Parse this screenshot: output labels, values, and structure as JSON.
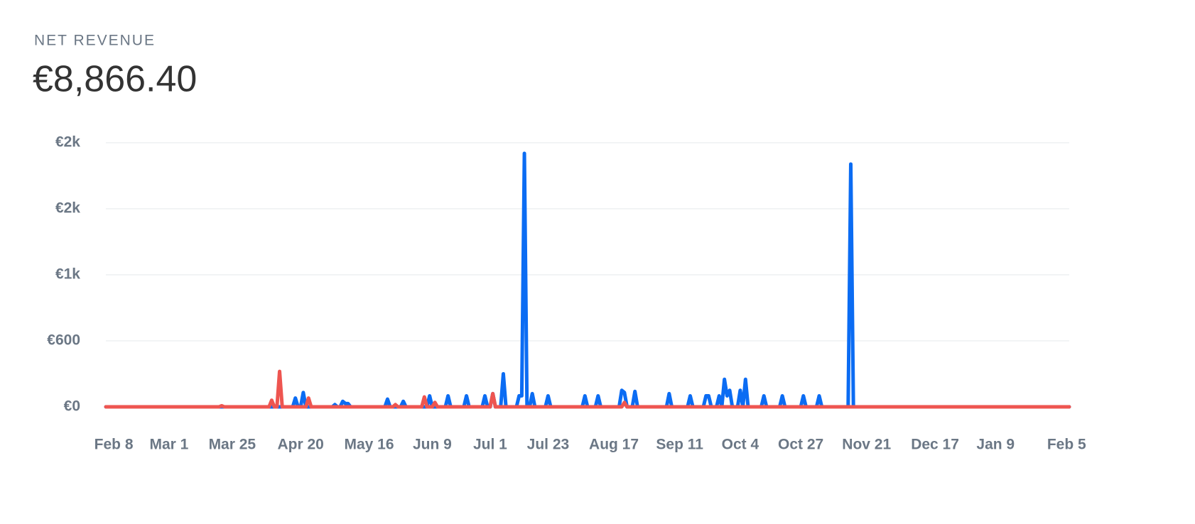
{
  "chart_data": {
    "type": "line",
    "title": "NET REVENUE",
    "headline": "€8,866.40",
    "xlim": [
      0,
      366
    ],
    "xticks": [
      {
        "value": 3,
        "label": "Feb 8"
      },
      {
        "value": 24,
        "label": "Mar 1"
      },
      {
        "value": 48,
        "label": "Mar 25"
      },
      {
        "value": 74,
        "label": "Apr 20"
      },
      {
        "value": 100,
        "label": "May 16"
      },
      {
        "value": 124,
        "label": "Jun 9"
      },
      {
        "value": 146,
        "label": "Jul 1"
      },
      {
        "value": 168,
        "label": "Jul 23"
      },
      {
        "value": 193,
        "label": "Aug 17"
      },
      {
        "value": 218,
        "label": "Sep 11"
      },
      {
        "value": 241,
        "label": "Oct 4"
      },
      {
        "value": 264,
        "label": "Oct 27"
      },
      {
        "value": 289,
        "label": "Nov 21"
      },
      {
        "value": 315,
        "label": "Dec 17"
      },
      {
        "value": 338,
        "label": "Jan 9"
      },
      {
        "value": 365,
        "label": "Feb 5"
      }
    ],
    "ylim": [
      0,
      2400
    ],
    "yticks": [
      {
        "value": 0,
        "label": "€0"
      },
      {
        "value": 600,
        "label": "€600"
      },
      {
        "value": 1200,
        "label": "€1k"
      },
      {
        "value": 1800,
        "label": "€2k"
      },
      {
        "value": 2400,
        "label": "€2k"
      }
    ],
    "grid": true,
    "x": [
      0,
      43,
      44,
      45,
      62,
      63,
      64,
      65,
      66,
      67,
      71,
      72,
      73,
      74,
      75,
      76,
      77,
      78,
      86,
      87,
      88,
      89,
      90,
      91,
      92,
      93,
      106,
      107,
      108,
      109,
      110,
      111,
      112,
      113,
      114,
      120,
      121,
      122,
      123,
      124,
      125,
      126,
      129,
      130,
      131,
      136,
      137,
      138,
      143,
      144,
      145,
      146,
      147,
      148,
      150,
      151,
      152,
      156,
      157,
      158,
      159,
      160,
      161,
      162,
      163,
      167,
      168,
      169,
      181,
      182,
      183,
      186,
      187,
      188,
      195,
      196,
      197,
      198,
      200,
      201,
      202,
      213,
      214,
      215,
      221,
      222,
      223,
      227,
      228,
      229,
      230,
      232,
      233,
      234,
      235,
      236,
      237,
      238,
      240,
      241,
      242,
      243,
      244,
      249,
      250,
      251,
      256,
      257,
      258,
      264,
      265,
      266,
      270,
      271,
      272,
      282,
      283,
      284,
      366
    ],
    "series": [
      {
        "color": "#0b6cf3",
        "values": [
          0,
          0,
          0,
          0,
          0,
          0,
          0,
          0,
          0,
          0,
          0,
          80,
          0,
          0,
          130,
          0,
          0,
          0,
          0,
          20,
          0,
          0,
          50,
          30,
          30,
          0,
          0,
          70,
          0,
          0,
          0,
          0,
          0,
          50,
          0,
          0,
          0,
          0,
          100,
          0,
          0,
          0,
          0,
          100,
          0,
          0,
          100,
          0,
          0,
          100,
          0,
          0,
          120,
          0,
          0,
          300,
          0,
          0,
          100,
          100,
          2303,
          0,
          0,
          120,
          0,
          0,
          100,
          0,
          0,
          100,
          0,
          0,
          100,
          0,
          0,
          150,
          130,
          0,
          0,
          140,
          0,
          0,
          120,
          0,
          0,
          100,
          0,
          0,
          100,
          100,
          0,
          0,
          100,
          0,
          250,
          100,
          150,
          0,
          0,
          150,
          0,
          250,
          0,
          0,
          100,
          0,
          0,
          100,
          0,
          0,
          100,
          0,
          0,
          100,
          0,
          0,
          2206,
          0,
          0
        ]
      },
      {
        "color": "#ee5550",
        "values": [
          0,
          0,
          10,
          0,
          0,
          60,
          0,
          0,
          322,
          0,
          0,
          0,
          0,
          0,
          0,
          0,
          80,
          0,
          0,
          0,
          0,
          0,
          0,
          0,
          0,
          0,
          0,
          0,
          0,
          0,
          20,
          0,
          0,
          0,
          0,
          0,
          90,
          0,
          0,
          0,
          40,
          0,
          0,
          0,
          0,
          0,
          0,
          0,
          0,
          0,
          0,
          0,
          120,
          0,
          0,
          0,
          0,
          0,
          0,
          0,
          0,
          0,
          0,
          0,
          0,
          0,
          0,
          0,
          0,
          0,
          0,
          0,
          0,
          0,
          0,
          0,
          40,
          0,
          0,
          0,
          0,
          0,
          0,
          0,
          0,
          0,
          0,
          0,
          0,
          0,
          0,
          0,
          0,
          0,
          0,
          0,
          0,
          0,
          0,
          0,
          0,
          0,
          0,
          0,
          0,
          0,
          0,
          0,
          0,
          0,
          0,
          0,
          0,
          0,
          0,
          0,
          0,
          0,
          0
        ]
      }
    ]
  }
}
